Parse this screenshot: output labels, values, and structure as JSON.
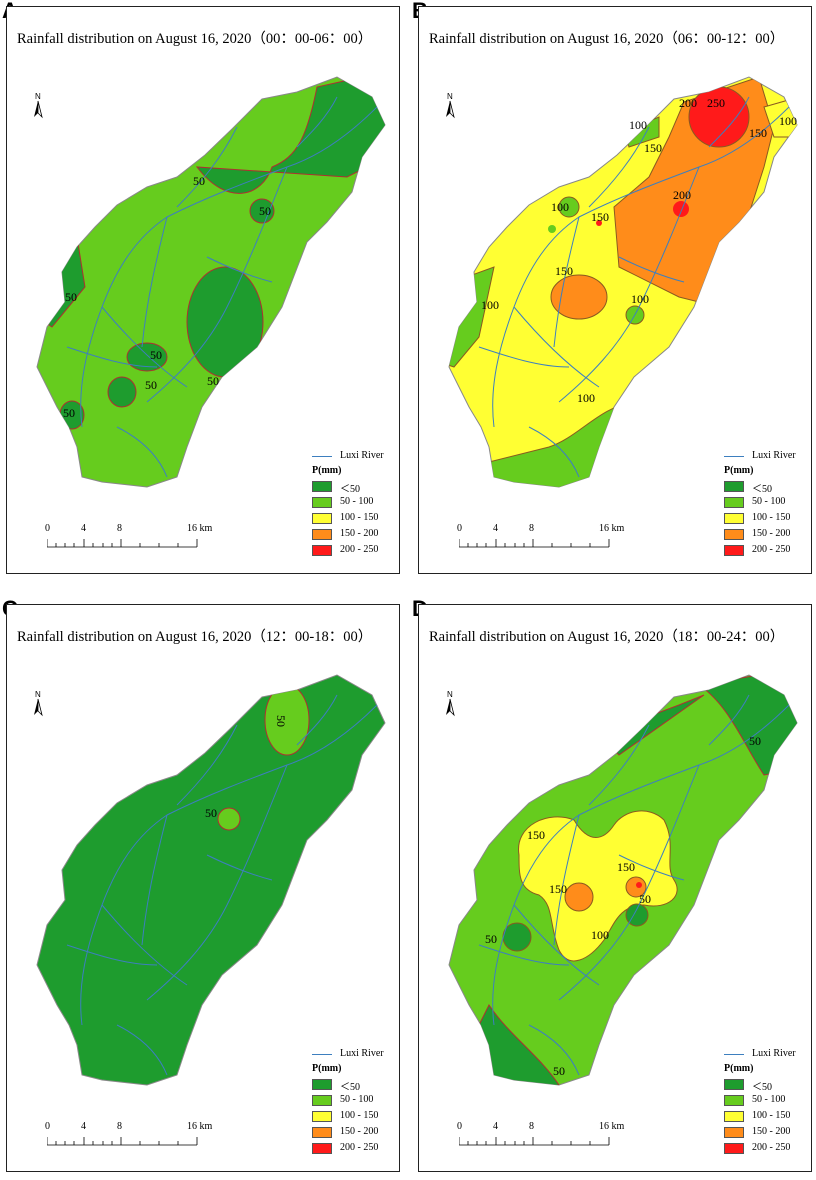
{
  "panels": [
    {
      "letter": "A",
      "title": "Rainfall distribution on August 16, 2020（00：00-06：00）"
    },
    {
      "letter": "B",
      "title": "Rainfall distribution on August 16, 2020（06：00-12：00）"
    },
    {
      "letter": "C",
      "title": "Rainfall distribution on August 16, 2020（12：00-18：00）"
    },
    {
      "letter": "D",
      "title": "Rainfall distribution on August 16, 2020（18：00-24：00）"
    }
  ],
  "north_label": "N",
  "legend": {
    "river_label": "Luxi River",
    "title": "P(mm)",
    "classes": [
      {
        "label": "＜50",
        "color": "#1e9c2e"
      },
      {
        "label": "50 - 100",
        "color": "#66cc1e"
      },
      {
        "label": "100 - 150",
        "color": "#ffff33"
      },
      {
        "label": "150 - 200",
        "color": "#ff8c1a"
      },
      {
        "label": "200 - 250",
        "color": "#ff1a1a"
      }
    ]
  },
  "scale_bar": {
    "labels": [
      "0",
      "4",
      "8",
      "16 km"
    ]
  },
  "contour_labels": {
    "A": [
      "50",
      "50",
      "50",
      "50",
      "50",
      "50",
      "50"
    ],
    "B": [
      "250",
      "200",
      "150",
      "100",
      "100",
      "150",
      "150",
      "200",
      "100",
      "150",
      "100",
      "100",
      "100"
    ],
    "C": [
      "50",
      "50"
    ],
    "D": [
      "50",
      "150",
      "150",
      "150",
      "50",
      "100",
      "50",
      "50"
    ]
  },
  "colors": {
    "river": "#3d7fbf",
    "boundary": "#b03030"
  }
}
